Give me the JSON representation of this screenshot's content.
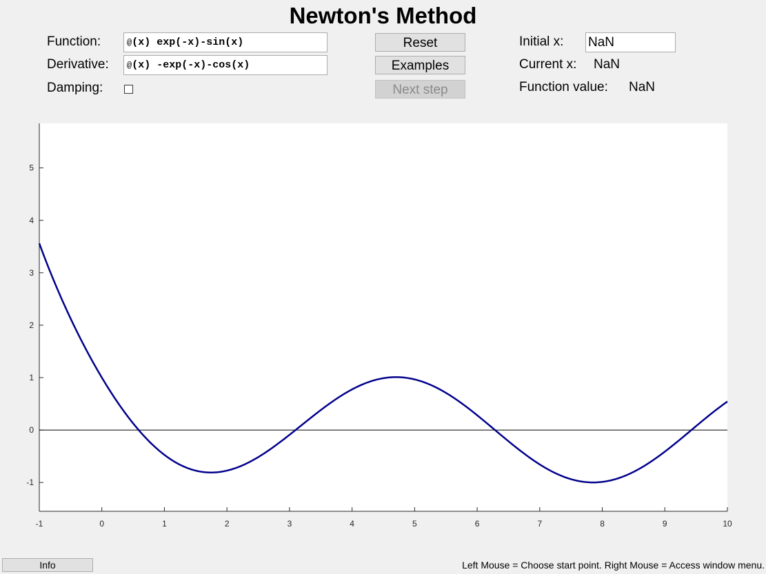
{
  "title": "Newton's Method",
  "controls": {
    "function_label": "Function:",
    "function_prefix": "@",
    "function_value": "(x) exp(-x)-sin(x)",
    "derivative_label": "Derivative:",
    "derivative_prefix": "@",
    "derivative_value": "(x) -exp(-x)-cos(x)",
    "damping_label": "Damping:",
    "damping_checked": false,
    "reset_label": "Reset",
    "examples_label": "Examples",
    "next_step_label": "Next step",
    "next_step_enabled": false,
    "initial_x_label": "Initial x:",
    "initial_x_value": "NaN",
    "current_x_label": "Current x:",
    "current_x_value": "NaN",
    "function_value_label": "Function value:",
    "function_value_value": "NaN"
  },
  "footer": {
    "info_label": "Info",
    "hint": "Left Mouse = Choose start point. Right Mouse = Access window menu."
  },
  "colors": {
    "curve": "#00008b",
    "zero_line": "#000000",
    "plot_background": "#ffffff",
    "window_background": "#f0f0f0"
  },
  "chart_data": {
    "type": "line",
    "function": "exp(-x)-sin(x)",
    "xlim": [
      -1,
      10
    ],
    "ylim": [
      -1.55,
      5.85
    ],
    "xticks": [
      -1,
      0,
      1,
      2,
      3,
      4,
      5,
      6,
      7,
      8,
      9,
      10
    ],
    "yticks": [
      -1,
      0,
      1,
      2,
      3,
      4,
      5
    ],
    "zero_line": true,
    "grid": false
  }
}
